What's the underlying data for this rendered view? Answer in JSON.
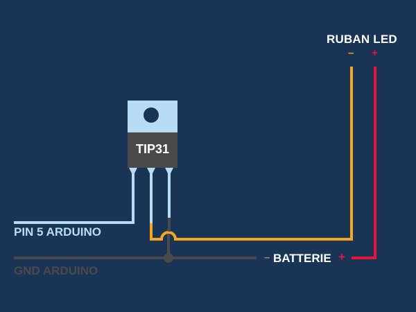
{
  "labels": {
    "ruban_led": "RUBAN LED",
    "led_minus": "–",
    "led_plus": "+",
    "transistor": "TIP31",
    "pin5": "PIN 5 ARDUINO",
    "gnd": "GND ARDUINO",
    "battery_minus": "–",
    "battery": "BATTERIE",
    "battery_plus": "+"
  },
  "colors": {
    "background": "#1a3455",
    "wire_orange": "#f5a623",
    "wire_red": "#e8143c",
    "wire_lightblue": "#b9dcf5",
    "wire_gnd": "#4a4a4a",
    "chip_body": "#4a4a4a",
    "chip_tab": "#b9dcf5"
  }
}
